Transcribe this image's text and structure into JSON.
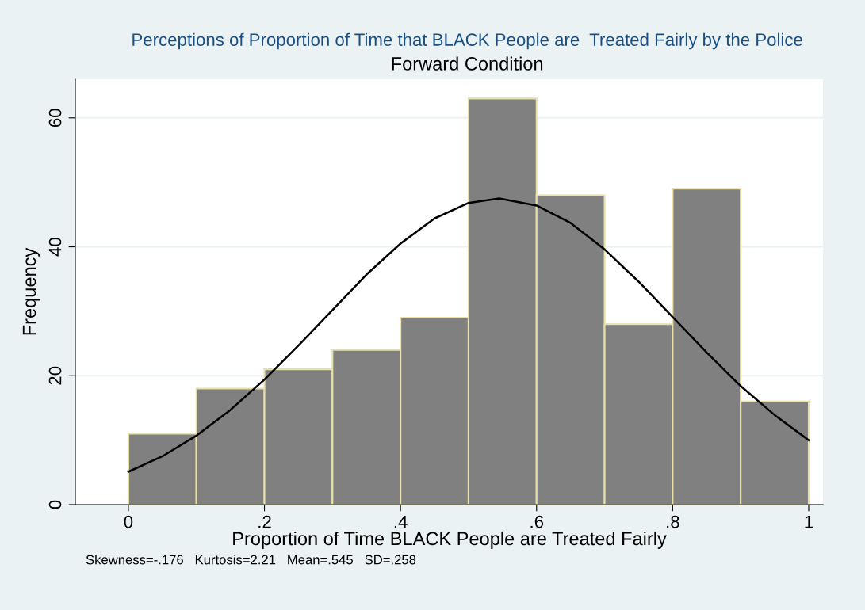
{
  "chart_data": {
    "type": "histogram",
    "title": "Perceptions of Proportion of Time that BLACK People are  Treated Fairly by the Police",
    "subtitle": "Forward Condition",
    "xlabel": "Proportion of Time BLACK People are Treated Fairly",
    "ylabel": "Frequency",
    "annotations": [
      "Skewness=-.176   Kurtosis=2.21   Mean=.545   SD=.258"
    ],
    "bins": [
      0,
      0.1,
      0.2,
      0.3,
      0.4,
      0.5,
      0.6,
      0.7,
      0.8,
      0.9,
      1.0
    ],
    "series": [
      {
        "color": "#808080",
        "values": [
          11,
          18,
          21,
          24,
          29,
          63,
          48,
          28,
          49,
          16
        ]
      },
      {
        "type": "line",
        "color": "#000000",
        "x": [
          0,
          0.05,
          0.1,
          0.15,
          0.2,
          0.25,
          0.3,
          0.35,
          0.4,
          0.45,
          0.5,
          0.545,
          0.6,
          0.65,
          0.7,
          0.75,
          0.8,
          0.85,
          0.9,
          0.95,
          1.0
        ],
        "values": [
          5.1,
          7.5,
          10.7,
          14.7,
          19.4,
          24.7,
          30.2,
          35.7,
          40.5,
          44.4,
          46.8,
          47.5,
          46.4,
          43.7,
          39.6,
          34.6,
          29.1,
          23.6,
          18.4,
          13.9,
          10.0
        ]
      }
    ],
    "xlim": [
      -0.078,
      1.021
    ],
    "ylim": [
      0,
      66
    ],
    "xticks": [
      0,
      {
        "value": 0.2,
        "label": ".2"
      },
      {
        "value": 0.4,
        "label": ".4"
      },
      {
        "value": 0.6,
        "label": ".6"
      },
      {
        "value": 0.8,
        "label": ".8"
      },
      1
    ],
    "yticks": [
      0,
      20,
      40,
      60
    ],
    "grid": "y",
    "legend": false
  }
}
